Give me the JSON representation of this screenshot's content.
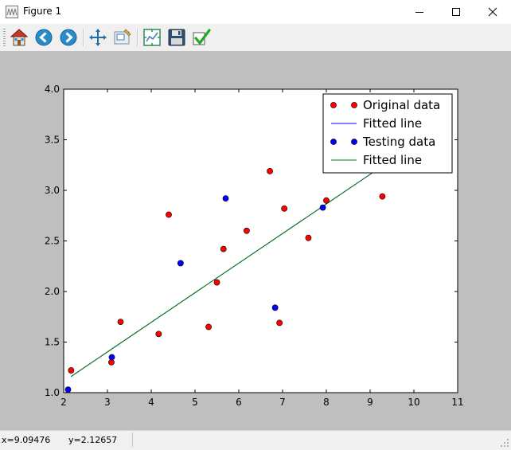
{
  "window": {
    "title": "Figure 1"
  },
  "toolbar": {
    "buttons": [
      {
        "name": "home-icon"
      },
      {
        "name": "back-icon"
      },
      {
        "name": "forward-icon"
      },
      {
        "name": "pan-icon"
      },
      {
        "name": "zoom-icon"
      },
      {
        "name": "subplots-icon"
      },
      {
        "name": "save-icon"
      },
      {
        "name": "edit-axis-icon"
      }
    ]
  },
  "status": {
    "x": "x=9.09476",
    "y": "y=2.12657"
  },
  "colors": {
    "red_points": "#ff0000",
    "blue_points": "#0000ff",
    "fitted_blue": "#0000ff",
    "fitted_green": "#008000",
    "canvas_bg": "#bfbfbf"
  },
  "chart_data": {
    "type": "scatter",
    "xlim": [
      2,
      11
    ],
    "ylim": [
      1.0,
      4.0
    ],
    "xticks": [
      "2",
      "3",
      "4",
      "5",
      "6",
      "7",
      "8",
      "9",
      "10",
      "11"
    ],
    "yticks": [
      "1.0",
      "1.5",
      "2.0",
      "2.5",
      "3.0",
      "3.5",
      "4.0"
    ],
    "legend_position": "top-right",
    "series": [
      {
        "name": "Original data",
        "kind": "scatter",
        "color": "#ff0000",
        "points": [
          [
            2.17,
            1.22
          ],
          [
            3.09,
            1.3
          ],
          [
            3.3,
            1.7
          ],
          [
            4.17,
            1.58
          ],
          [
            4.4,
            2.76
          ],
          [
            5.31,
            1.65
          ],
          [
            5.5,
            2.09
          ],
          [
            5.65,
            2.42
          ],
          [
            6.18,
            2.6
          ],
          [
            6.71,
            3.19
          ],
          [
            6.93,
            1.69
          ],
          [
            7.04,
            2.82
          ],
          [
            7.59,
            2.53
          ],
          [
            8.0,
            2.9
          ],
          [
            9.28,
            2.94
          ]
        ]
      },
      {
        "name": "Fitted line",
        "kind": "line",
        "color": "#0000ff",
        "points": [
          [
            2.17,
            1.16
          ],
          [
            9.28,
            3.24
          ]
        ]
      },
      {
        "name": "Testing data",
        "kind": "scatter",
        "color": "#0000ff",
        "points": [
          [
            2.1,
            1.03
          ],
          [
            3.1,
            1.35
          ],
          [
            4.67,
            2.28
          ],
          [
            5.7,
            2.92
          ],
          [
            6.83,
            1.84
          ],
          [
            7.92,
            2.83
          ]
        ]
      },
      {
        "name": "Fitted line",
        "kind": "line",
        "color": "#008000",
        "points": [
          [
            2.17,
            1.16
          ],
          [
            9.28,
            3.24
          ]
        ]
      }
    ]
  }
}
